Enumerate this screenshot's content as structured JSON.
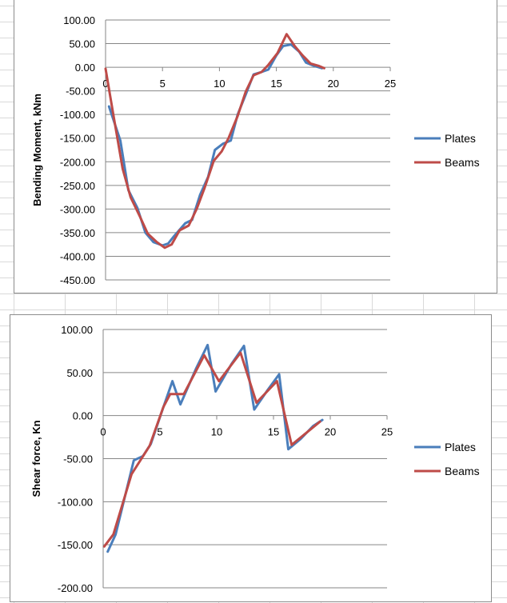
{
  "chart_data": [
    {
      "type": "line",
      "ylabel": "Bending Moment, kNm",
      "xlim": [
        0,
        25
      ],
      "ylim": [
        -450,
        100
      ],
      "x_ticks": [
        "0",
        "5",
        "10",
        "15",
        "20",
        "25"
      ],
      "y_ticks": [
        "100.00",
        "50.00",
        "0.00",
        "-50.00",
        "-100.00",
        "-150.00",
        "-200.00",
        "-250.00",
        "-300.00",
        "-350.00",
        "-400.00",
        "-450.00"
      ],
      "legend": "right",
      "grid": "horizontal",
      "series": [
        {
          "name": "Plates",
          "color": "#4a7ebb",
          "x": [
            0.3,
            1.3,
            2.0,
            2.8,
            3.5,
            4.2,
            5.0,
            5.5,
            6.0,
            7.0,
            7.6,
            8.3,
            9.0,
            9.6,
            10.3,
            11.0,
            11.6,
            12.3,
            13.0,
            13.7,
            14.3,
            15.0,
            15.6,
            16.3,
            17.0,
            17.6,
            18.3,
            19.0
          ],
          "y": [
            -83,
            -155,
            -260,
            -298,
            -350,
            -370,
            -377,
            -373,
            -358,
            -330,
            -323,
            -270,
            -232,
            -175,
            -162,
            -155,
            -100,
            -58,
            -15,
            -10,
            -5,
            25,
            45,
            48,
            33,
            10,
            3,
            -2
          ]
        },
        {
          "name": "Beams",
          "color": "#be4b48",
          "x": [
            0.0,
            0.7,
            1.5,
            2.2,
            3.0,
            3.7,
            4.5,
            5.2,
            5.8,
            6.5,
            7.3,
            8.0,
            8.7,
            9.5,
            10.2,
            10.8,
            11.6,
            12.3,
            13.0,
            13.7,
            14.3,
            15.1,
            15.9,
            16.6,
            17.3,
            18.0,
            18.7,
            19.2
          ],
          "y": [
            -3,
            -103,
            -215,
            -275,
            -315,
            -352,
            -370,
            -382,
            -375,
            -345,
            -335,
            -300,
            -255,
            -198,
            -178,
            -150,
            -103,
            -52,
            -17,
            -10,
            5,
            30,
            70,
            45,
            25,
            8,
            3,
            -2
          ]
        }
      ]
    },
    {
      "type": "line",
      "ylabel": "Shear force, Kn",
      "xlim": [
        0,
        25
      ],
      "ylim": [
        -200,
        100
      ],
      "x_ticks": [
        "0",
        "5",
        "10",
        "15",
        "20",
        "25"
      ],
      "y_ticks": [
        "100.00",
        "50.00",
        "0.00",
        "-50.00",
        "-100.00",
        "-150.00",
        "-200.00"
      ],
      "legend": "right",
      "grid": "horizontal",
      "series": [
        {
          "name": "Plates",
          "color": "#4a7ebb",
          "x": [
            0.4,
            1.1,
            2.7,
            3.5,
            4.2,
            5.1,
            6.1,
            6.8,
            8.2,
            9.2,
            9.9,
            11.3,
            12.4,
            13.3,
            14.5,
            15.5,
            16.3,
            17.4,
            18.5,
            19.3
          ],
          "y": [
            -158,
            -138,
            -52,
            -47,
            -33,
            2,
            40,
            13,
            55,
            82,
            28,
            60,
            81,
            7,
            30,
            48,
            -39,
            -27,
            -12,
            -5
          ]
        },
        {
          "name": "Beams",
          "color": "#be4b48",
          "x": [
            0.1,
            0.9,
            2.5,
            4.1,
            5.3,
            5.9,
            7.1,
            8.9,
            10.2,
            12.1,
            13.5,
            15.3,
            16.6,
            19.1
          ],
          "y": [
            -152,
            -138,
            -68,
            -35,
            10,
            25,
            25,
            70,
            40,
            73,
            15,
            40,
            -34,
            -7
          ]
        }
      ]
    }
  ]
}
